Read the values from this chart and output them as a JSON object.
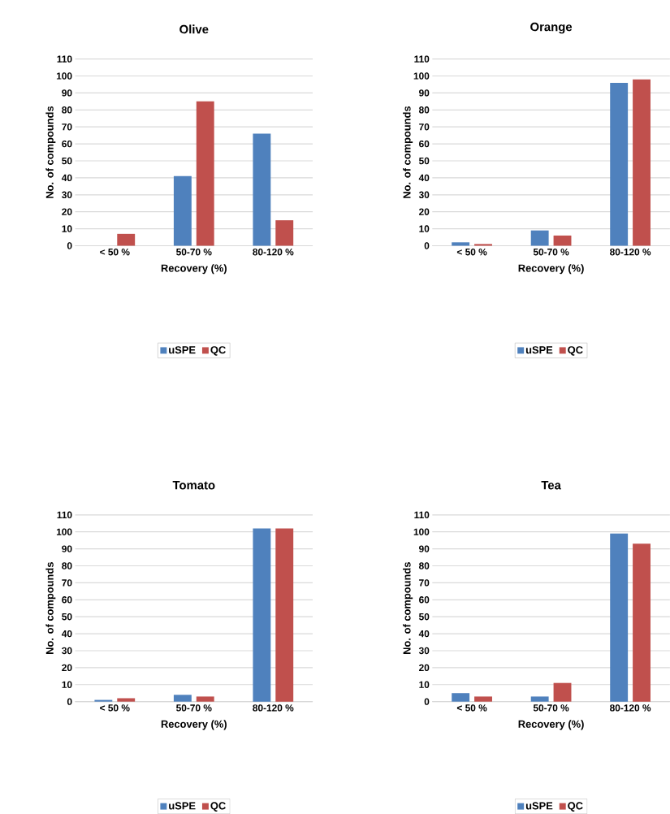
{
  "chart_data": [
    {
      "type": "bar",
      "title": "Olive",
      "xlabel": "Recovery (%)",
      "ylabel": "No. of compounds",
      "categories": [
        "< 50 %",
        "50-70 %",
        "80-120 %"
      ],
      "series": [
        {
          "name": "uSPE",
          "color": "#4f81bd",
          "values": [
            0,
            41,
            66
          ]
        },
        {
          "name": "QC",
          "color": "#c0504d",
          "values": [
            7,
            85,
            15
          ]
        }
      ],
      "ylim": [
        0,
        110
      ],
      "yticks": [
        0,
        10,
        20,
        30,
        40,
        50,
        60,
        70,
        80,
        90,
        100,
        110
      ],
      "grid": "y",
      "legend": "bottom"
    },
    {
      "type": "bar",
      "title": "Orange",
      "xlabel": "Recovery (%)",
      "ylabel": "No. of compounds",
      "categories": [
        "< 50 %",
        "50-70 %",
        "80-120 %"
      ],
      "series": [
        {
          "name": "uSPE",
          "color": "#4f81bd",
          "values": [
            2,
            9,
            96
          ]
        },
        {
          "name": "QC",
          "color": "#c0504d",
          "values": [
            1,
            6,
            98
          ]
        }
      ],
      "ylim": [
        0,
        110
      ],
      "yticks": [
        0,
        10,
        20,
        30,
        40,
        50,
        60,
        70,
        80,
        90,
        100,
        110
      ],
      "grid": "y",
      "legend": "bottom"
    },
    {
      "type": "bar",
      "title": "Tomato",
      "xlabel": "Recovery (%)",
      "ylabel": "No. of compounds",
      "categories": [
        "< 50 %",
        "50-70 %",
        "80-120 %"
      ],
      "series": [
        {
          "name": "uSPE",
          "color": "#4f81bd",
          "values": [
            1,
            4,
            102
          ]
        },
        {
          "name": "QC",
          "color": "#c0504d",
          "values": [
            2,
            3,
            102
          ]
        }
      ],
      "ylim": [
        0,
        110
      ],
      "yticks": [
        0,
        10,
        20,
        30,
        40,
        50,
        60,
        70,
        80,
        90,
        100,
        110
      ],
      "grid": "y",
      "legend": "bottom"
    },
    {
      "type": "bar",
      "title": "Tea",
      "xlabel": "Recovery (%)",
      "ylabel": "No. of compounds",
      "categories": [
        "< 50 %",
        "50-70 %",
        "80-120 %"
      ],
      "series": [
        {
          "name": "uSPE",
          "color": "#4f81bd",
          "values": [
            5,
            3,
            99
          ]
        },
        {
          "name": "QC",
          "color": "#c0504d",
          "values": [
            3,
            11,
            93
          ]
        }
      ],
      "ylim": [
        0,
        110
      ],
      "yticks": [
        0,
        10,
        20,
        30,
        40,
        50,
        60,
        70,
        80,
        90,
        100,
        110
      ],
      "grid": "y",
      "legend": "bottom"
    }
  ]
}
